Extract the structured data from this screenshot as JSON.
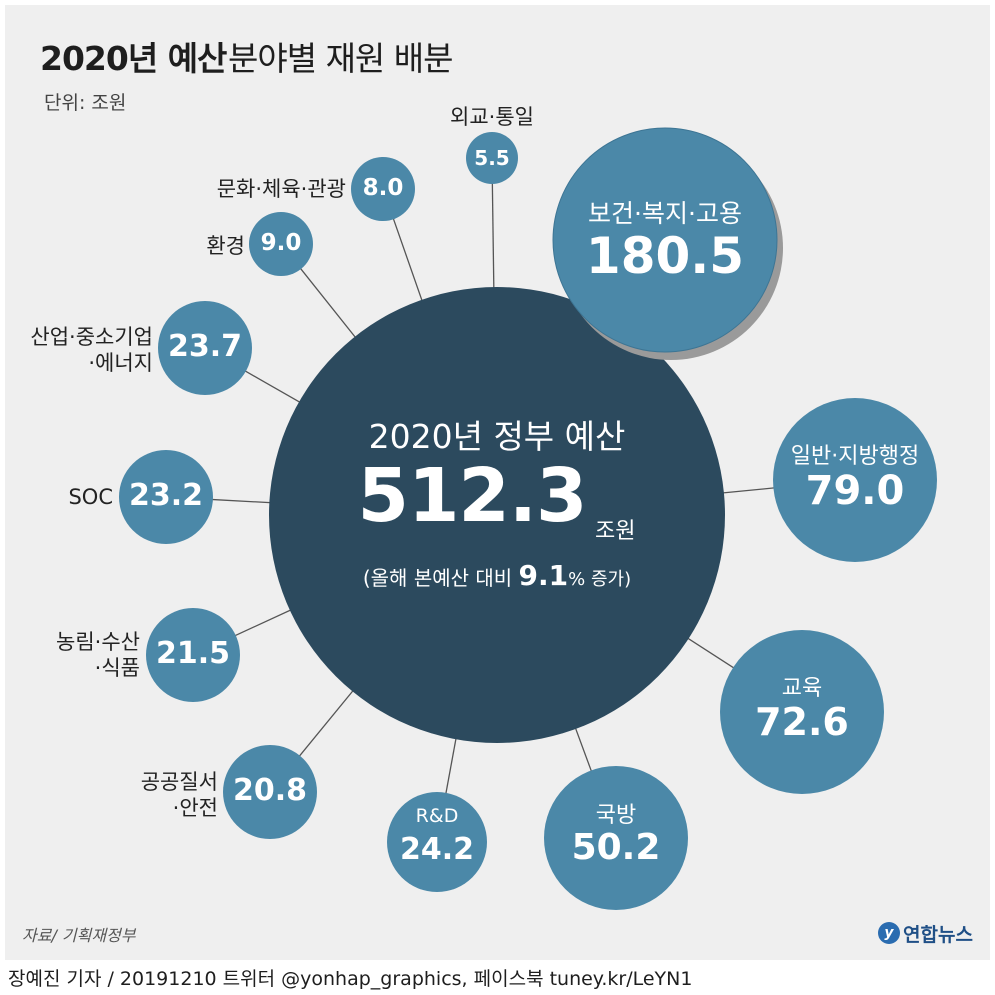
{
  "header": {
    "title_bold": "2020년 예산",
    "title_rest": "분야별 재원 배분",
    "unit": "단위: 조원"
  },
  "center": {
    "label": "2020년 정부 예산",
    "value": "512.3",
    "unit": "조원",
    "note_prefix": "(올해 본예산 대비 ",
    "note_value": "9.1",
    "note_suffix": "% 증가)"
  },
  "chart_data": {
    "type": "bubble",
    "title": "2020년 예산 분야별 재원 배분",
    "unit": "조원",
    "total": 512.3,
    "growth_percent": 9.1,
    "categories": [
      "보건·복지·고용",
      "일반·지방행정",
      "교육",
      "국방",
      "R&D",
      "공공질서·안전",
      "농림·수산·식품",
      "SOC",
      "산업·중소기업·에너지",
      "환경",
      "문화·체육·관광",
      "외교·통일"
    ],
    "values": [
      180.5,
      79.0,
      72.6,
      50.2,
      24.2,
      20.8,
      21.5,
      23.2,
      23.7,
      9.0,
      8.0,
      5.5
    ],
    "value_labels": [
      "180.5",
      "79.0",
      "72.6",
      "50.2",
      "24.2",
      "20.8",
      "21.5",
      "23.2",
      "23.7",
      "9.0",
      "8.0",
      "5.5"
    ],
    "outside_labels": [
      "",
      "",
      "",
      "",
      "",
      "공공질서\n·안전",
      "농림·수산\n·식품",
      "SOC",
      "산업·중소기업\n·에너지",
      "환경",
      "문화·체육·관광",
      "외교·통일"
    ],
    "inside_labels": [
      "보건·복지·고용",
      "일반·지방행정",
      "교육",
      "국방",
      "R&D",
      "",
      "",
      "",
      "",
      "",
      "",
      ""
    ],
    "colors": {
      "background": "#efefef",
      "center_bubble": "#2c4a5e",
      "bubble": "#4b88a8",
      "connector": "#555555"
    }
  },
  "footer": {
    "source": "자료/ 기획재정부",
    "logo": "연합뉴스",
    "credit": "장예진 기자 / 20191210 트위터 @yonhap_graphics, 페이스북 tuney.kr/LeYN1"
  }
}
